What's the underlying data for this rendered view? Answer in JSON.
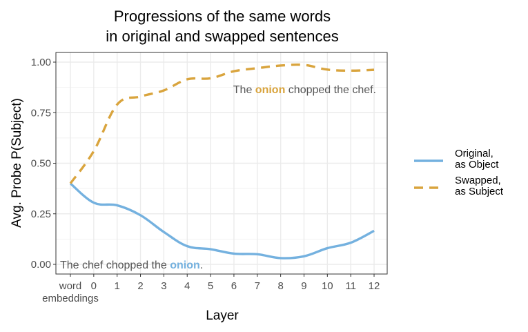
{
  "chart_data": {
    "type": "line",
    "title_lines": [
      "Progressions of the same words",
      "in original and swapped sentences"
    ],
    "xlabel": "Layer",
    "ylabel": "Avg. Probe P(Subject)",
    "x_categories": [
      "word\nembeddings",
      "0",
      "1",
      "2",
      "3",
      "4",
      "5",
      "6",
      "7",
      "8",
      "9",
      "10",
      "11",
      "12"
    ],
    "ylim": [
      0,
      1
    ],
    "y_ticks": [
      "0.00",
      "0.25",
      "0.50",
      "0.75",
      "1.00"
    ],
    "grid": true,
    "legend_position": "right",
    "series": [
      {
        "name": "Original,\nas Object",
        "color": "#74b1df",
        "style": "solid",
        "values": [
          0.4,
          0.305,
          0.292,
          0.243,
          0.16,
          0.09,
          0.075,
          0.053,
          0.05,
          0.031,
          0.04,
          0.08,
          0.107,
          0.166
        ]
      },
      {
        "name": "Swapped,\nas Subject",
        "color": "#d9a43d",
        "style": "dashed",
        "values": [
          0.4,
          0.56,
          0.79,
          0.83,
          0.86,
          0.915,
          0.92,
          0.955,
          0.97,
          0.983,
          0.986,
          0.963,
          0.958,
          0.962
        ]
      }
    ],
    "annotations": [
      {
        "before": "The ",
        "word": "onion",
        "after": " chopped the chef.",
        "color": "#d9a43d"
      },
      {
        "before": "The chef chopped the ",
        "word": "onion",
        "after": ".",
        "color": "#74b1df"
      }
    ]
  }
}
